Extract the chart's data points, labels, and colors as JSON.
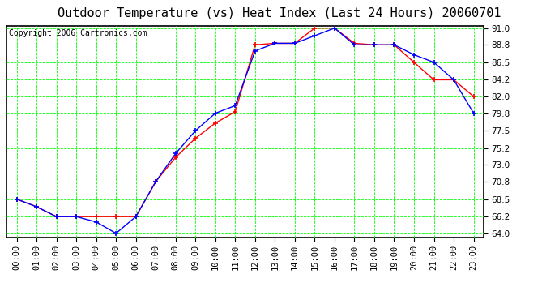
{
  "title": "Outdoor Temperature (vs) Heat Index (Last 24 Hours) 20060701",
  "copyright": "Copyright 2006 Cartronics.com",
  "hours": [
    "00:00",
    "01:00",
    "02:00",
    "03:00",
    "04:00",
    "05:00",
    "06:00",
    "07:00",
    "08:00",
    "09:00",
    "10:00",
    "11:00",
    "12:00",
    "13:00",
    "14:00",
    "15:00",
    "16:00",
    "17:00",
    "18:00",
    "19:00",
    "20:00",
    "21:00",
    "22:00",
    "23:00"
  ],
  "temp": [
    68.5,
    67.5,
    66.2,
    66.2,
    66.2,
    66.2,
    66.2,
    70.8,
    74.0,
    76.5,
    78.5,
    80.0,
    88.8,
    89.0,
    89.0,
    91.0,
    91.0,
    89.0,
    88.8,
    88.8,
    86.5,
    84.2,
    84.2,
    82.0
  ],
  "heat_index": [
    68.5,
    67.5,
    66.2,
    66.2,
    65.5,
    64.0,
    66.2,
    70.8,
    74.5,
    77.5,
    79.8,
    80.8,
    88.0,
    89.0,
    89.0,
    90.0,
    91.0,
    88.8,
    88.8,
    88.8,
    87.5,
    86.5,
    84.2,
    79.8
  ],
  "temp_color": "#FF0000",
  "heat_index_color": "#0000FF",
  "bg_color": "#FFFFFF",
  "plot_bg_color": "#FFFFFF",
  "grid_color": "#00FF00",
  "ymin": 64.0,
  "ymax": 91.0,
  "yticks": [
    64.0,
    66.2,
    68.5,
    70.8,
    73.0,
    75.2,
    77.5,
    79.8,
    82.0,
    84.2,
    86.5,
    88.8,
    91.0
  ],
  "title_fontsize": 11,
  "copyright_fontsize": 7,
  "tick_fontsize": 7.5
}
